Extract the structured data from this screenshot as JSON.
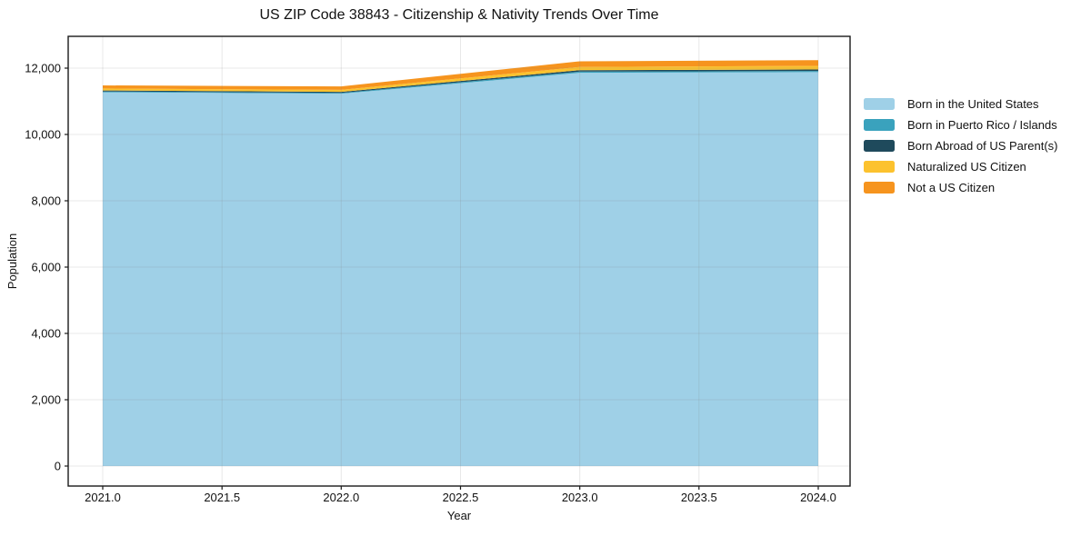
{
  "figure": {
    "title": "US ZIP Code 38843 - Citizenship & Nativity Trends Over Time"
  },
  "chart_data": {
    "type": "area",
    "stacked": true,
    "title": "US ZIP Code 38843 - Citizenship & Nativity Trends Over Time",
    "xlabel": "Year",
    "ylabel": "Population",
    "x": [
      2021,
      2022,
      2023,
      2024
    ],
    "series": [
      {
        "name": "Born in the United States",
        "color": "#9fd0e7",
        "values": [
          11270,
          11230,
          11860,
          11880
        ]
      },
      {
        "name": "Born in Puerto Rico / Islands",
        "color": "#3aa2bd",
        "values": [
          25,
          25,
          35,
          35
        ]
      },
      {
        "name": "Born Abroad of US Parent(s)",
        "color": "#1f4a5c",
        "values": [
          30,
          30,
          45,
          45
        ]
      },
      {
        "name": "Naturalized US Citizen",
        "color": "#fcc22e",
        "values": [
          60,
          60,
          95,
          105
        ]
      },
      {
        "name": "Not a US Citizen",
        "color": "#f6941e",
        "values": [
          95,
          105,
          170,
          175
        ]
      }
    ],
    "stack_totals": [
      11480,
      11450,
      12205,
      12240
    ],
    "x_ticks": [
      2021.0,
      2021.5,
      2022.0,
      2022.5,
      2023.0,
      2023.5,
      2024.0
    ],
    "x_tick_labels": [
      "2021.0",
      "2021.5",
      "2022.0",
      "2022.5",
      "2023.0",
      "2023.5",
      "2024.0"
    ],
    "y_ticks": [
      0,
      2000,
      4000,
      6000,
      8000,
      10000,
      12000
    ],
    "y_tick_labels": [
      "0",
      "2,000",
      "4,000",
      "6,000",
      "8,000",
      "10,000",
      "12,000"
    ],
    "xlim": [
      2020.85,
      2024.15
    ],
    "ylim": [
      -610,
      12960
    ],
    "grid": true,
    "legend_position": "right"
  }
}
